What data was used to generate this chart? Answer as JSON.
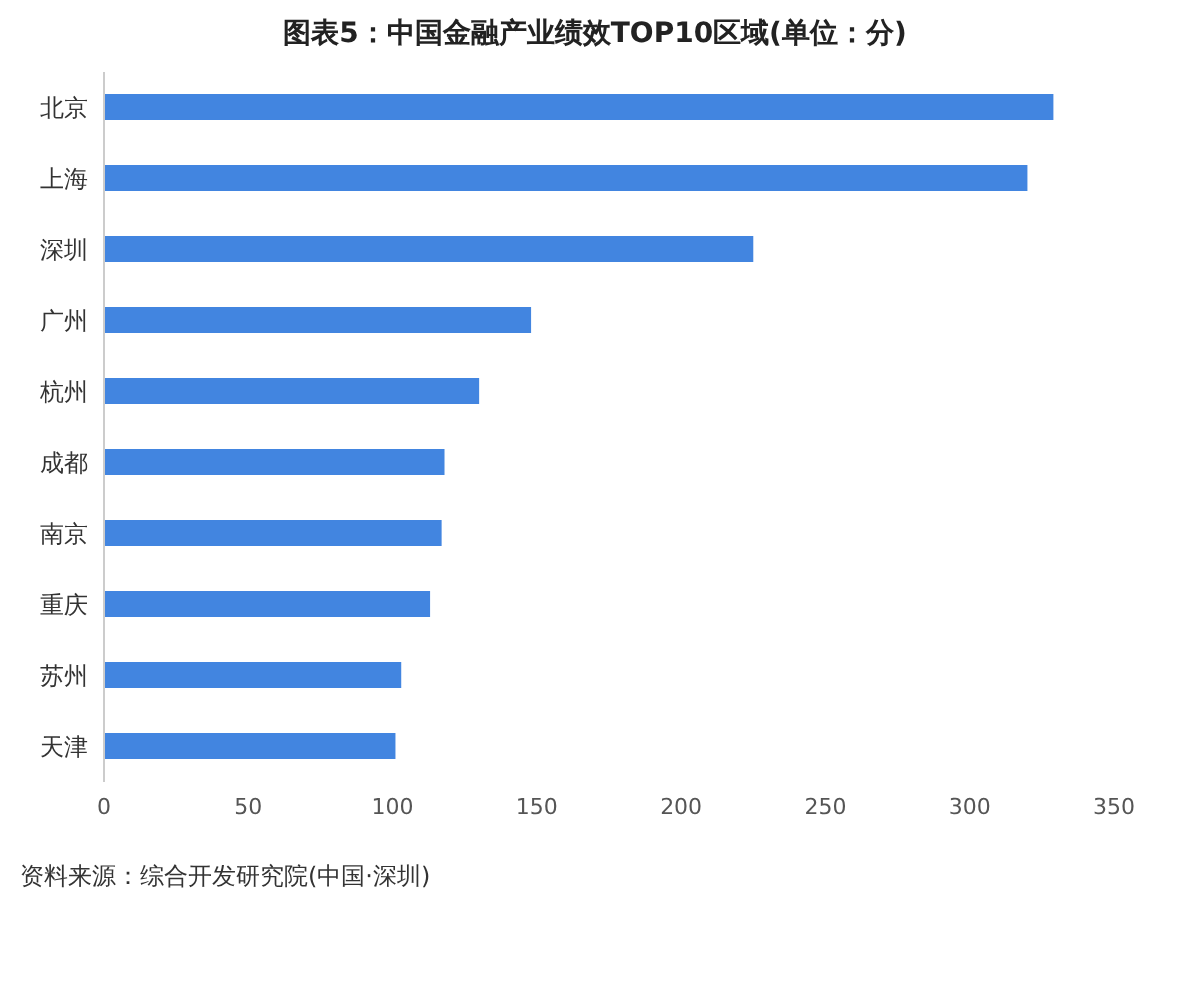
{
  "chart_data": {
    "type": "bar",
    "orientation": "horizontal",
    "title": "图表5：中国金融产业绩效TOP10区域(单位：分)",
    "categories": [
      "北京",
      "上海",
      "深圳",
      "广州",
      "杭州",
      "成都",
      "南京",
      "重庆",
      "苏州",
      "天津"
    ],
    "values": [
      329,
      320,
      225,
      148,
      130,
      118,
      117,
      113,
      103,
      101
    ],
    "color": "#4285e0",
    "xlim": [
      0,
      350
    ],
    "xticks": [
      0,
      50,
      100,
      150,
      200,
      250,
      300,
      350
    ],
    "grid": false,
    "legend": false,
    "annotations": [
      "资料来源：综合开发研究院(中国·深圳)"
    ]
  }
}
